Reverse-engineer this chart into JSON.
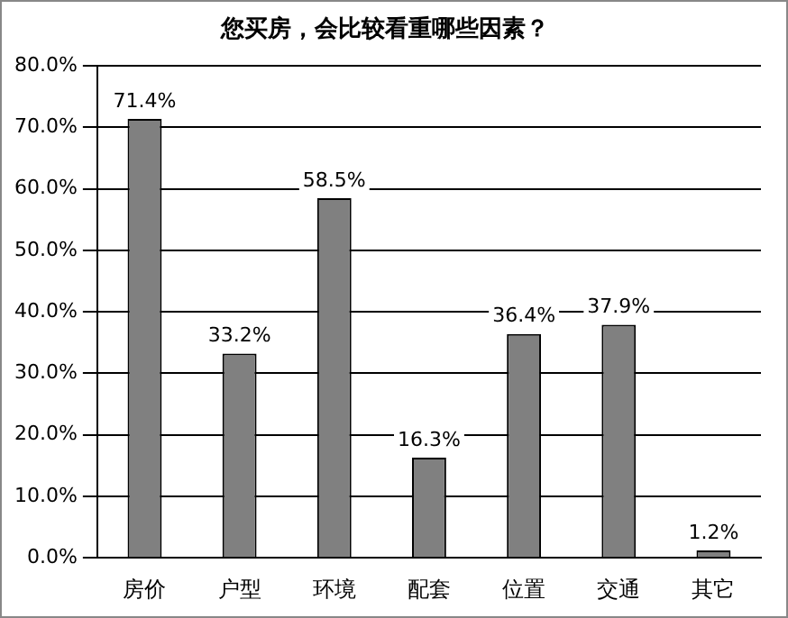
{
  "chart_data": {
    "type": "bar",
    "title": "您买房，会比较看重哪些因素？",
    "categories": [
      "房价",
      "户型",
      "环境",
      "配套",
      "位置",
      "交通",
      "其它"
    ],
    "values": [
      71.4,
      33.2,
      58.5,
      16.3,
      36.4,
      37.9,
      1.2
    ],
    "value_labels": [
      "71.4%",
      "33.2%",
      "58.5%",
      "16.3%",
      "36.4%",
      "37.9%",
      "1.2%"
    ],
    "color": "#808080",
    "ylim": [
      0,
      80
    ],
    "yticks": [
      {
        "value": 0,
        "label": "0.0%"
      },
      {
        "value": 10,
        "label": "10.0%"
      },
      {
        "value": 20,
        "label": "20.0%"
      },
      {
        "value": 30,
        "label": "30.0%"
      },
      {
        "value": 40,
        "label": "40.0%"
      },
      {
        "value": 50,
        "label": "50.0%"
      },
      {
        "value": 60,
        "label": "60.0%"
      },
      {
        "value": 70,
        "label": "70.0%"
      },
      {
        "value": 80,
        "label": "80.0%"
      }
    ],
    "grid": "y",
    "legend": false
  }
}
